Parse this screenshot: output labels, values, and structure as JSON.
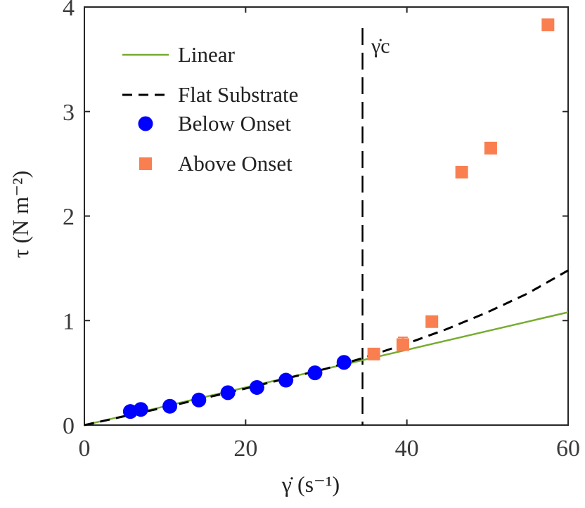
{
  "chart_data": {
    "type": "scatter",
    "xlabel": "γ̇ (s⁻¹)",
    "ylabel": "τ (N m⁻²)",
    "xlim": [
      0,
      60
    ],
    "ylim": [
      0,
      4
    ],
    "xticks": [
      0,
      20,
      40,
      60
    ],
    "yticks": [
      0,
      1,
      2,
      3,
      4
    ],
    "grid": false,
    "legend_position": "top-left",
    "critical_line": {
      "x": 34.5,
      "label": "γ̇c"
    },
    "series": [
      {
        "name": "Linear",
        "kind": "line",
        "style": "solid",
        "color": "#77AC30",
        "x": [
          0,
          60
        ],
        "y": [
          0,
          1.08
        ]
      },
      {
        "name": "Flat Substrate",
        "kind": "line",
        "style": "dashed",
        "color": "#000000",
        "x": [
          0,
          10,
          20,
          30,
          34.5,
          40,
          45,
          50,
          55,
          60
        ],
        "y": [
          0,
          0.17,
          0.35,
          0.54,
          0.64,
          0.78,
          0.92,
          1.08,
          1.26,
          1.48
        ]
      },
      {
        "name": "Below Onset",
        "kind": "scatter",
        "marker": "circle",
        "color": "#0000FF",
        "x": [
          5.7,
          7.0,
          10.6,
          14.2,
          17.8,
          21.4,
          25.0,
          28.6,
          32.2
        ],
        "y": [
          0.13,
          0.15,
          0.18,
          0.24,
          0.31,
          0.36,
          0.43,
          0.5,
          0.6
        ]
      },
      {
        "name": "Above Onset",
        "kind": "scatter",
        "marker": "square",
        "color": "#F97F51",
        "x": [
          35.9,
          39.5,
          43.1,
          46.8,
          50.4,
          57.5
        ],
        "y": [
          0.68,
          0.77,
          0.99,
          2.42,
          2.65,
          3.83
        ],
        "err_upper": [
          0.71,
          0.84,
          1.04,
          2.46,
          2.67,
          3.85
        ]
      }
    ]
  }
}
